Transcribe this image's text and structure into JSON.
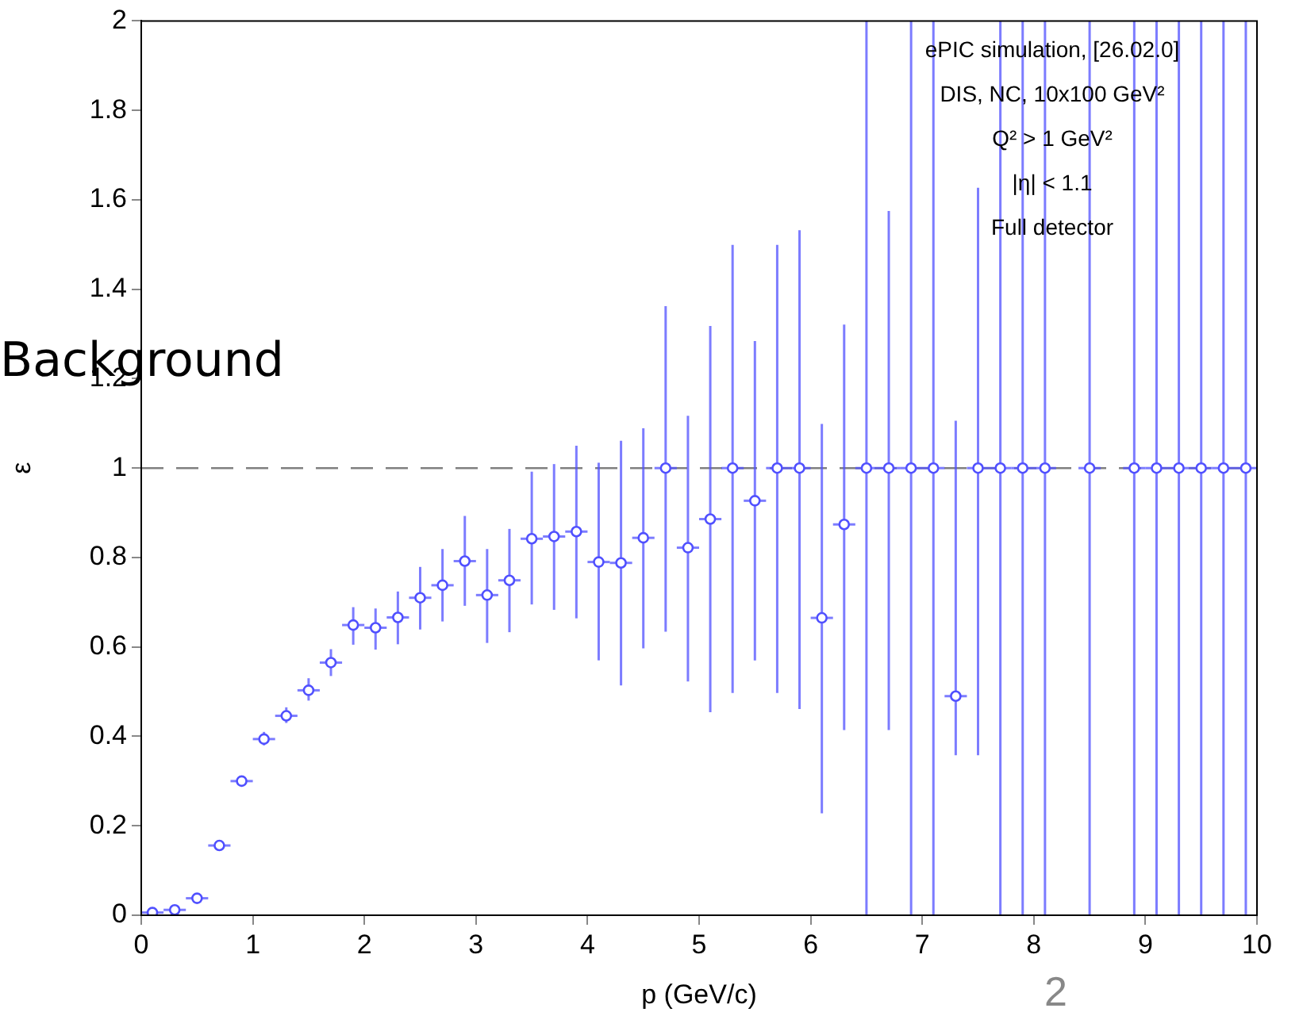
{
  "chart_data": {
    "type": "scatter",
    "title": "Background",
    "subtitle": "2",
    "xlabel": "p (GeV/c)",
    "ylabel": "ε",
    "annotations": [
      "ePIC simulation, [26.02.0]",
      "DIS, NC, 10x100 GeV²",
      "Q² > 1 GeV²",
      "|η| < 1.1",
      "Full detector"
    ],
    "x": [
      0.1,
      0.3,
      0.5,
      0.7,
      0.9,
      1.1,
      1.3,
      1.5,
      1.7,
      1.9,
      2.1,
      2.3,
      2.5,
      2.7,
      2.9,
      3.1,
      3.3,
      3.5,
      3.7,
      3.9,
      4.1,
      4.3,
      4.5,
      4.7,
      4.9,
      5.1,
      5.3,
      5.5,
      5.7,
      5.9,
      6.1,
      6.3,
      6.5,
      6.7,
      6.9,
      7.1,
      7.3,
      7.5,
      7.7,
      7.9,
      8.1,
      8.5,
      8.9,
      9.1,
      9.3,
      9.5,
      9.7,
      9.9
    ],
    "series": [
      {
        "color": "#5050ff",
        "values": [
          0.006,
          0.012,
          0.038,
          0.156,
          0.3,
          0.394,
          0.446,
          0.503,
          0.565,
          0.649,
          0.643,
          0.666,
          0.71,
          0.738,
          0.792,
          0.716,
          0.749,
          0.842,
          0.847,
          0.858,
          0.79,
          0.788,
          0.844,
          1,
          0.822,
          0.886,
          1,
          0.927,
          1,
          1,
          0.665,
          0.874,
          1,
          1,
          1,
          1,
          0.49,
          1,
          1,
          1,
          1,
          1,
          1,
          1,
          1,
          1,
          1,
          1
        ],
        "errors": [
          null,
          null,
          null,
          null,
          null,
          [
            0.38,
            0.41
          ],
          [
            0.43,
            0.465
          ],
          [
            0.48,
            0.53
          ],
          [
            0.535,
            0.595
          ],
          [
            0.605,
            0.689
          ],
          [
            0.594,
            0.686
          ],
          [
            0.606,
            0.724
          ],
          [
            0.639,
            0.779
          ],
          [
            0.657,
            0.819
          ],
          [
            0.692,
            0.893
          ],
          [
            0.609,
            0.819
          ],
          [
            0.633,
            0.864
          ],
          [
            0.695,
            0.992
          ],
          [
            0.683,
            1.009
          ],
          [
            0.664,
            1.05
          ],
          [
            0.57,
            1.012
          ],
          [
            0.514,
            1.061
          ],
          [
            0.597,
            1.089
          ],
          [
            0.634,
            1.362
          ],
          [
            0.523,
            1.117
          ],
          [
            0.454,
            1.318
          ],
          [
            0.497,
            1.499
          ],
          [
            0.57,
            1.284
          ],
          [
            0.497,
            1.499
          ],
          [
            0.461,
            1.532
          ],
          [
            0.228,
            1.099
          ],
          [
            0.414,
            1.321
          ],
          [
            0,
            2
          ],
          [
            0.414,
            1.575
          ],
          [
            0,
            2
          ],
          [
            0,
            2
          ],
          [
            0.358,
            1.106
          ],
          [
            0.358,
            1.627
          ],
          [
            0,
            2
          ],
          [
            0,
            2
          ],
          [
            0,
            2
          ],
          [
            0,
            2
          ],
          [
            0,
            2
          ],
          [
            0,
            2
          ],
          [
            0,
            2
          ],
          [
            0,
            2
          ],
          [
            0,
            2
          ],
          [
            0,
            2
          ]
        ],
        "xerrors": [
          0.1,
          0.1,
          0.1,
          0.1,
          0.1,
          0.1,
          0.1,
          0.1,
          0.1,
          0.1,
          0.1,
          0.1,
          0.1,
          0.1,
          0.1,
          0.1,
          0.1,
          0.1,
          0.1,
          0.1,
          0.1,
          0.1,
          0.1,
          0.1,
          0.1,
          0.1,
          0.1,
          0.1,
          0.1,
          0.1,
          0.1,
          0.1,
          0.1,
          0.1,
          0.1,
          0.1,
          0.1,
          0.1,
          0.1,
          0.1,
          0.1,
          0.1,
          0.1,
          0.1,
          0.1,
          0.1,
          0.1,
          0.1
        ]
      }
    ],
    "xlim": [
      0,
      10
    ],
    "xticks": [
      0,
      1,
      2,
      3,
      4,
      5,
      6,
      7,
      8,
      9,
      10
    ],
    "ylim": [
      0,
      2
    ],
    "yticks": [
      0,
      0.2,
      0.4,
      0.6,
      0.8,
      1,
      1.2,
      1.4,
      1.6,
      1.8,
      2
    ],
    "ref_lines": [
      {
        "axis": "y",
        "value": 1,
        "color": "#808080",
        "line_style": "dashed"
      }
    ],
    "grid": false,
    "legend": false,
    "marker": "circle"
  }
}
